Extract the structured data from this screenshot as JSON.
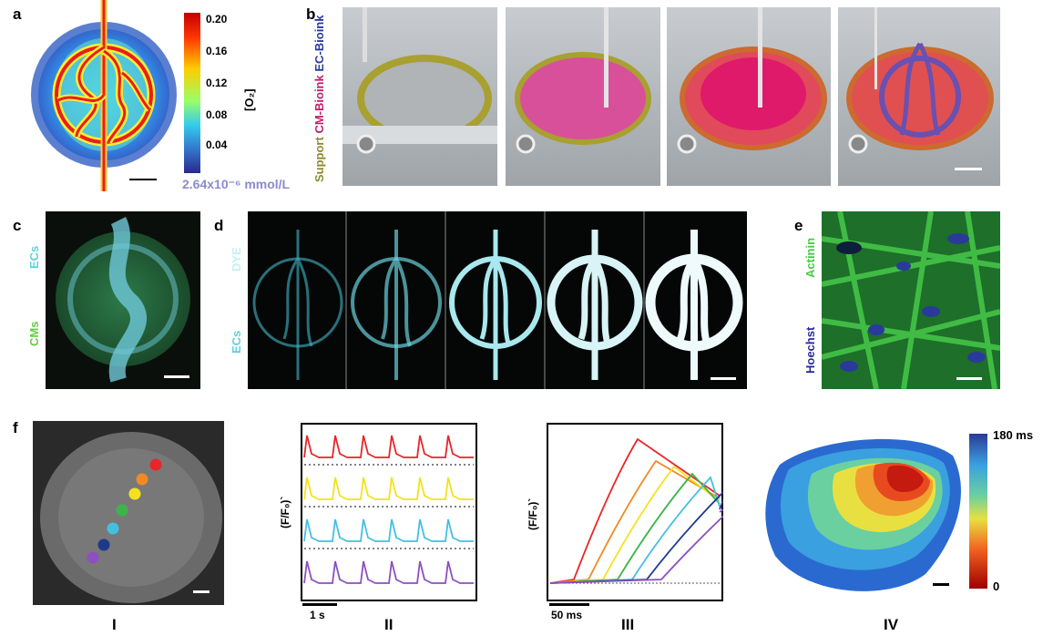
{
  "panel_labels": {
    "a": "a",
    "b": "b",
    "c": "c",
    "d": "d",
    "e": "e",
    "f": "f"
  },
  "panel_a": {
    "colorbar_ticks": [
      "0.20",
      "0.16",
      "0.12",
      "0.08",
      "0.04"
    ],
    "colorbar_label": "[O₂]",
    "colorbar_unit": "2.64x10⁻⁶ mmol/L",
    "colors": [
      "#b10026",
      "#ff3300",
      "#ffcc00",
      "#aaff55",
      "#33ccff",
      "#3366cc",
      "#2a2a8f"
    ]
  },
  "panel_b": {
    "label_support": "Support",
    "label_cm": "CM-Bioink",
    "label_ec": "EC-Bioink"
  },
  "panel_c": {
    "label_ecs": "ECs",
    "label_cms": "CMs"
  },
  "panel_d": {
    "label_dye": "DYE",
    "label_ecs": "ECs"
  },
  "panel_e": {
    "label_actinin": "Actinin",
    "label_hoechst": "Hoechst"
  },
  "panel_f": {
    "roman": [
      "I",
      "II",
      "III",
      "IV"
    ],
    "ylabel": "(F/F₀)`",
    "scale_II": "1 s",
    "scale_III": "50 ms",
    "colorbar_max": "180 ms",
    "colorbar_min": "0",
    "trace_colors": [
      "#e8262a",
      "#f08a24",
      "#f2e21d",
      "#3bb54a",
      "#45bfe0",
      "#1d3a8a",
      "#8e4fbf"
    ]
  }
}
